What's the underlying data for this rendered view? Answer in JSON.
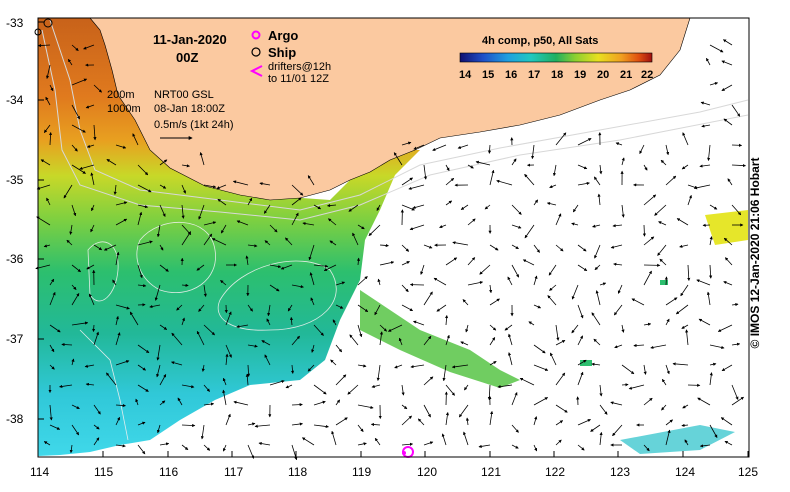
{
  "map": {
    "date": "11-Jan-2020",
    "hour": "00Z",
    "legend": {
      "argo": "Argo",
      "ship": "Ship",
      "drifters_line1": "drifters@12h",
      "drifters_line2": "to 11/01 12Z"
    },
    "isobaths": {
      "shallow": "200m",
      "deep": "1000m"
    },
    "current_source": {
      "line1": "NRT00 GSL",
      "line2": "08-Jan 18:00Z"
    },
    "scale_label": "0.5m/s (1kt 24h)",
    "colorbar": {
      "title": "4h comp, p50, All Sats",
      "ticks": [
        "14",
        "15",
        "16",
        "17",
        "18",
        "19",
        "20",
        "21",
        "22"
      ],
      "colors": [
        "#1a1a8c",
        "#1f4fc8",
        "#1fa0e0",
        "#20c8c0",
        "#20b060",
        "#6cc830",
        "#e8e020",
        "#f0a020",
        "#e05010",
        "#b01810"
      ]
    },
    "axes": {
      "y_ticks": [
        "-33",
        "-34",
        "-35",
        "-36",
        "-37",
        "-38"
      ],
      "x_ticks": [
        "114",
        "115",
        "116",
        "117",
        "118",
        "119",
        "120",
        "121",
        "122",
        "123",
        "124",
        "125"
      ]
    },
    "credit": "© IMOS 12-Jan-2020 21:06 Hobart",
    "colors": {
      "land": "#fbc9a0",
      "cyan": "#3fd0e6",
      "green": "#2cbf6e",
      "yellow": "#e6e62a",
      "orange": "#e47a1e"
    }
  }
}
